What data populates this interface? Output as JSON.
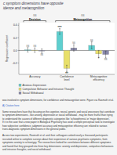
{
  "chart_data": {
    "type": "bar",
    "title": "c symptom dimensions have opposite",
    "subtitle": "idence and metacognition",
    "y_label": "Regression coefficient",
    "categories": [
      "Accuracy",
      "Confidence\nlevel",
      "Metacognitive\nefficiency"
    ],
    "series": [
      {
        "name": "Anxious-Depression",
        "color": "#5ecfcf",
        "values": [
          0.01,
          0.3,
          0.08
        ],
        "errors": [
          0.035,
          0.045,
          0.055
        ],
        "significance": [
          "NS",
          "****",
          "NS"
        ]
      },
      {
        "name": "Compulsive Behavior and Intrusive Thought",
        "color": "#e8e06a",
        "values": [
          0.005,
          -0.285,
          -0.055
        ],
        "errors": [
          0.035,
          0.05,
          0.055
        ],
        "significance": [
          "NS",
          "***",
          "*"
        ]
      },
      {
        "name": "Social Withdrawal",
        "color": "#8888aa",
        "values": [
          -0.01,
          0.04,
          -0.065
        ],
        "errors": [
          0.035,
          0.05,
          0.055
        ],
        "significance": [
          "NS",
          "NS",
          "NS"
        ]
      }
    ],
    "ylim": [
      -0.38,
      0.44
    ],
    "yticks": [
      -0.2,
      {
        "value": 0,
        "label": "0.0"
      },
      0.2,
      0.4
    ],
    "grid": false,
    "legend": "bottom",
    "brackets": [
      {
        "label": "Decision",
        "span": [
          0,
          0
        ],
        "note": "NS"
      },
      {
        "label": "Metacognition",
        "span": [
          1,
          2
        ],
        "note": "NS"
      }
    ],
    "annotations": [
      {
        "lines": [
          "was involved in symptom dimensions, for confidence and metacognition were. Figure via Rasmuth et al."
        ]
      },
      {
        "lines": [
          "A) Citation here"
        ],
        "color": "#3366cc"
      },
      {
        "lines": [
          "Some researchers have that focusing on the cognitive, neural, genetic and social processes that contribute",
          "to symptom dimensions - like anxiety, depression or social withdrawal - may be more fruitful than trying",
          "to understand the causes of different diagnostic categories like 'schizophrenia' or 'major depression'.",
          "If it is the case that a new paper in Biological Psychiatry has used a simple perceptual task to investigate",
          "how subjective confidence, judgment accuracy and metacognitive efficiency are related to various",
          "trans-diagnostic symptom dimensions in the general public."
        ]
      },
      {
        "lines": [
          "Across two experiments, Rasmuth et al. and their colleagues asked nearly a thousand participants",
          "recruited online to complete surveys about their experience of various psychiatric symptoms, from",
          "symptoms anxiety to schizotypy. The researchers looked for correlations between different symptoms",
          "and found that they grouped into three key dimensions: anxiety and depression, compulsive behaviours",
          "and intrusive thoughts, and social withdrawal."
        ]
      }
    ]
  }
}
